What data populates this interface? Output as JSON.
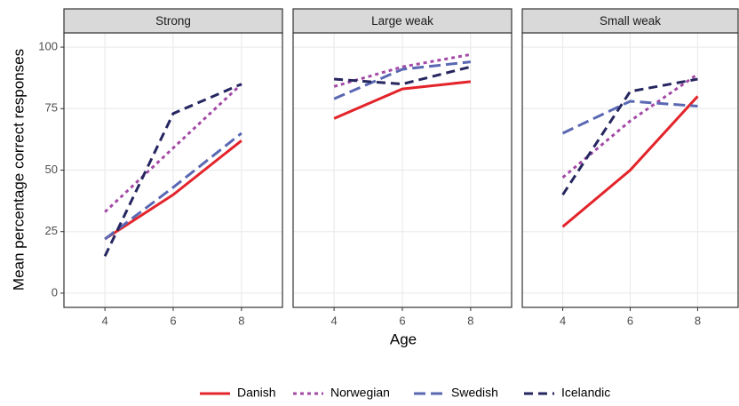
{
  "x_label": "Age",
  "y_label": "Mean percentage correct responses",
  "legend": [
    {
      "name": "Danish",
      "color": "#e3242b",
      "dash": "none"
    },
    {
      "name": "Norwegian",
      "color": "#a34aa6",
      "dash": "4 4"
    },
    {
      "name": "Swedish",
      "color": "#5a68b3",
      "dash": "13 6"
    },
    {
      "name": "Icelandic",
      "color": "#262660",
      "dash": "10 6"
    }
  ],
  "chart_data": [
    {
      "type": "line",
      "title": "Strong",
      "x": [
        4,
        6,
        8
      ],
      "xlim": [
        2.8,
        9.2
      ],
      "xticks": [
        4,
        6,
        8
      ],
      "ylim": [
        -5.8,
        105.8
      ],
      "yticks": [
        0,
        25,
        50,
        75,
        100
      ],
      "grid": true,
      "series": [
        {
          "values": [
            22,
            40,
            62
          ]
        },
        {
          "values": [
            33,
            59,
            85
          ]
        },
        {
          "values": [
            22,
            43,
            65
          ]
        },
        {
          "values": [
            15,
            73,
            85
          ]
        }
      ]
    },
    {
      "type": "line",
      "title": "Large weak",
      "x": [
        4,
        6,
        8
      ],
      "xlim": [
        2.8,
        9.2
      ],
      "xticks": [
        4,
        6,
        8
      ],
      "ylim": [
        -5.8,
        105.8
      ],
      "yticks": [
        0,
        25,
        50,
        75,
        100
      ],
      "grid": true,
      "series": [
        {
          "values": [
            71,
            83,
            86
          ]
        },
        {
          "values": [
            84,
            92,
            97
          ]
        },
        {
          "values": [
            79,
            91,
            94
          ]
        },
        {
          "values": [
            87,
            85,
            92
          ]
        }
      ]
    },
    {
      "type": "line",
      "title": "Small weak",
      "x": [
        4,
        6,
        8
      ],
      "xlim": [
        2.8,
        9.2
      ],
      "xticks": [
        4,
        6,
        8
      ],
      "ylim": [
        -5.8,
        105.8
      ],
      "yticks": [
        0,
        25,
        50,
        75,
        100
      ],
      "grid": true,
      "series": [
        {
          "values": [
            27,
            50,
            80
          ]
        },
        {
          "values": [
            47,
            70,
            89
          ]
        },
        {
          "values": [
            65,
            78,
            76
          ]
        },
        {
          "values": [
            40,
            82,
            87
          ]
        }
      ]
    }
  ]
}
